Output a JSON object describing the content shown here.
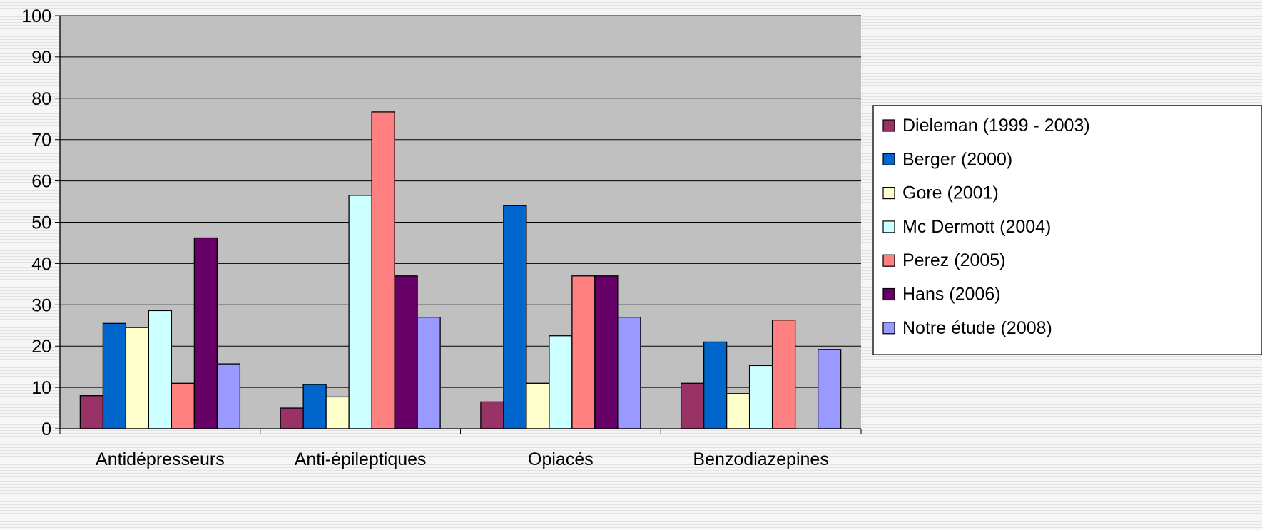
{
  "chart_data": {
    "type": "bar",
    "title": "",
    "xlabel": "",
    "ylabel": "",
    "ylim": [
      0,
      100
    ],
    "yticks": [
      "0",
      "10",
      "20",
      "30",
      "40",
      "50",
      "60",
      "70",
      "80",
      "90",
      "100"
    ],
    "grid": true,
    "legend_position": "right",
    "plot_background": "#c0c0c0",
    "categories": [
      "Antidépresseurs",
      "Anti-épileptiques",
      "Opiacés",
      "Benzodiazepines"
    ],
    "series": [
      {
        "name": "Dieleman (1999 - 2003)",
        "color": "#993366",
        "values": [
          8,
          5,
          6.5,
          11
        ]
      },
      {
        "name": "Berger (2000)",
        "color": "#0066cc",
        "values": [
          25.5,
          10.7,
          54,
          21
        ]
      },
      {
        "name": "Gore (2001)",
        "color": "#ffffcc",
        "values": [
          24.5,
          7.7,
          11,
          8.5
        ]
      },
      {
        "name": "Mc Dermott (2004)",
        "color": "#ccffff",
        "values": [
          28.6,
          56.5,
          22.5,
          15.3
        ]
      },
      {
        "name": "Perez (2005)",
        "color": "#ff8080",
        "values": [
          11,
          76.7,
          37,
          26.3
        ]
      },
      {
        "name": "Hans (2006)",
        "color": "#660066",
        "values": [
          46.2,
          37,
          37,
          null
        ]
      },
      {
        "name": "Notre étude (2008)",
        "color": "#9999ff",
        "values": [
          15.7,
          27,
          27,
          19.2
        ]
      }
    ]
  }
}
